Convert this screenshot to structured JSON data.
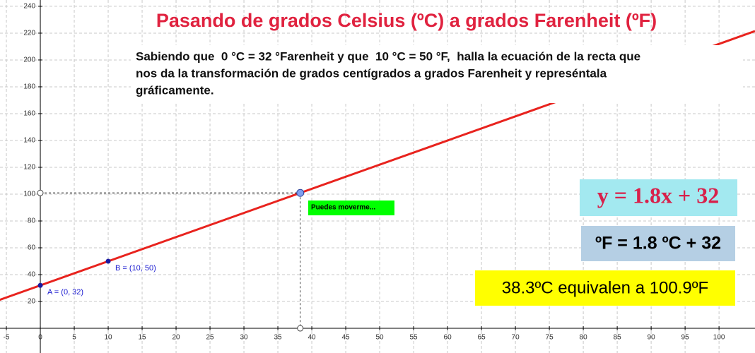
{
  "chart_data": {
    "type": "line",
    "title": "Pasando de grados Celsius (ºC) a grados Farenheit (ºF)",
    "problem_lines": [
      "Sabiendo que  0 °C = 32 °Farenheit y que  10 °C = 50 °F,  halla la ecuación de la recta que",
      "nos da la transformación de grados centígrados a grados Farenheit y represéntala",
      "gráficamente."
    ],
    "line": {
      "x": [
        -6,
        105.3
      ],
      "values": [
        21.2,
        221.5
      ],
      "color": "#e8231e"
    },
    "points": [
      {
        "label": "A = (0, 32)",
        "x": 0,
        "y": 32
      },
      {
        "label": "B = (10, 50)",
        "x": 10,
        "y": 50
      },
      {
        "x": 38.3,
        "y": 100.9
      }
    ],
    "hint": "Puedes moverme...",
    "equation": "y = 1.8x + 32",
    "equation_units": "ºF = 1.8 ºC + 32",
    "result": "38.3ºC equivalen a 100.9ºF",
    "xlim": [
      -5.94,
      105.3
    ],
    "ylim": [
      -18.4,
      244.7
    ],
    "xticks": [
      -5,
      0,
      5,
      10,
      15,
      20,
      25,
      30,
      35,
      40,
      45,
      50,
      55,
      60,
      65,
      70,
      75,
      80,
      85,
      90,
      95,
      100
    ],
    "yticks": [
      20,
      40,
      60,
      80,
      100,
      120,
      140,
      160,
      180,
      200,
      220,
      240
    ],
    "grid": true
  }
}
